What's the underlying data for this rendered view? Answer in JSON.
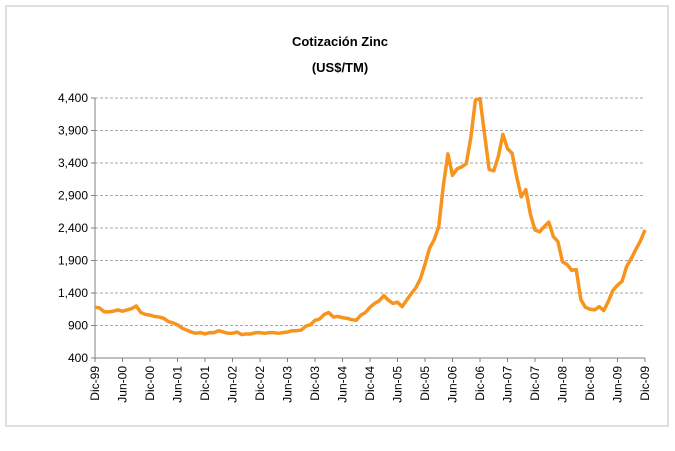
{
  "chart_data": {
    "type": "line",
    "title": "Cotización Zinc",
    "subtitle": "(US$/TM)",
    "categories": [
      "Dic-99",
      null,
      null,
      null,
      null,
      null,
      "Jun-00",
      null,
      null,
      null,
      null,
      null,
      "Dic-00",
      null,
      null,
      null,
      null,
      null,
      "Jun-01",
      null,
      null,
      null,
      null,
      null,
      "Dic-01",
      null,
      null,
      null,
      null,
      null,
      "Jun-02",
      null,
      null,
      null,
      null,
      null,
      "Dic-02",
      null,
      null,
      null,
      null,
      null,
      "Jun-03",
      null,
      null,
      null,
      null,
      null,
      "Dic-03",
      null,
      null,
      null,
      null,
      null,
      "Jun-04",
      null,
      null,
      null,
      null,
      null,
      "Dic-04",
      null,
      null,
      null,
      null,
      null,
      "Jun-05",
      null,
      null,
      null,
      null,
      null,
      "Dic-05",
      null,
      null,
      null,
      null,
      null,
      "Jun-06",
      null,
      null,
      null,
      null,
      null,
      "Dic-06",
      null,
      null,
      null,
      null,
      null,
      "Jun-07",
      null,
      null,
      null,
      null,
      null,
      "Dic-07",
      null,
      null,
      null,
      null,
      null,
      "Jun-08",
      null,
      null,
      null,
      null,
      null,
      "Dic-08",
      null,
      null,
      null,
      null,
      null,
      "Jun-09",
      null,
      null,
      null,
      null,
      null,
      "Dic-09"
    ],
    "series": [
      {
        "color": "#f7941d",
        "values": [
          1180,
          1170,
          1110,
          1110,
          1120,
          1140,
          1120,
          1140,
          1160,
          1200,
          1100,
          1070,
          1060,
          1040,
          1030,
          1010,
          960,
          940,
          910,
          860,
          830,
          800,
          780,
          790,
          770,
          790,
          790,
          820,
          800,
          780,
          780,
          800,
          760,
          770,
          770,
          790,
          790,
          780,
          790,
          790,
          780,
          790,
          800,
          820,
          820,
          830,
          890,
          910,
          980,
          1000,
          1070,
          1100,
          1030,
          1040,
          1020,
          1010,
          990,
          980,
          1060,
          1100,
          1180,
          1240,
          1280,
          1360,
          1290,
          1240,
          1260,
          1190,
          1290,
          1390,
          1480,
          1620,
          1840,
          2090,
          2220,
          2420,
          3050,
          3540,
          3210,
          3310,
          3340,
          3390,
          3790,
          4370,
          4390,
          3840,
          3300,
          3280,
          3500,
          3840,
          3620,
          3550,
          3190,
          2880,
          2990,
          2610,
          2370,
          2340,
          2420,
          2490,
          2270,
          2190,
          1880,
          1840,
          1750,
          1760,
          1300,
          1180,
          1150,
          1140,
          1190,
          1130,
          1270,
          1440,
          1520,
          1580,
          1810,
          1930,
          2070,
          2200,
          2370
        ]
      }
    ],
    "ylim": [
      400,
      4400
    ],
    "yticks": [
      400,
      900,
      {
        "value": 1400,
        "label": "1,400"
      },
      {
        "value": 1900,
        "label": "1,900"
      },
      {
        "value": 2400,
        "label": "2,400"
      },
      {
        "value": 2900,
        "label": "2,900"
      },
      {
        "value": 3400,
        "label": "3,400"
      },
      {
        "value": 3900,
        "label": "3,900"
      },
      {
        "value": 4400,
        "label": "4,400"
      }
    ],
    "grid": true
  }
}
